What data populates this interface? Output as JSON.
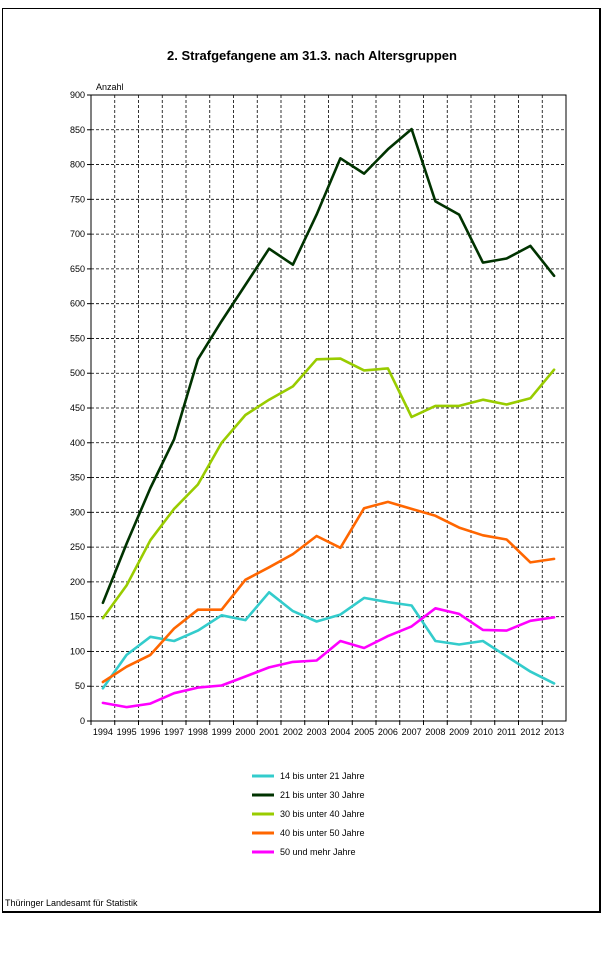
{
  "chart_data": {
    "type": "line",
    "title": "2. Strafgefangene am 31.3. nach Altersgruppen",
    "ylabel": "Anzahl",
    "xlabel": "",
    "categories": [
      "1994",
      "1995",
      "1996",
      "1997",
      "1998",
      "1999",
      "2000",
      "2001",
      "2002",
      "2003",
      "2004",
      "2005",
      "2006",
      "2007",
      "2008",
      "2009",
      "2010",
      "2011",
      "2012",
      "2013"
    ],
    "ylim": [
      0,
      900
    ],
    "yticks": [
      "0",
      "50",
      "100",
      "150",
      "200",
      "250",
      "300",
      "350",
      "400",
      "450",
      "500",
      "550",
      "600",
      "650",
      "700",
      "750",
      "800",
      "850",
      "900"
    ],
    "grid": true,
    "legend_position": "bottom",
    "series": [
      {
        "name": "14 bis unter 21 Jahre",
        "color": "#33cccc",
        "values": [
          47,
          95,
          121,
          115,
          130,
          152,
          145,
          185,
          158,
          143,
          153,
          177,
          171,
          166,
          115,
          110,
          115,
          93,
          71,
          54
        ]
      },
      {
        "name": "21 bis unter 30 Jahre",
        "color": "#003300",
        "values": [
          170,
          255,
          335,
          405,
          520,
          575,
          627,
          679,
          656,
          728,
          809,
          787,
          822,
          851,
          747,
          728,
          659,
          665,
          683,
          640
        ]
      },
      {
        "name": "30 bis unter 40 Jahre",
        "color": "#99cc00",
        "values": [
          148,
          195,
          260,
          305,
          340,
          400,
          440,
          462,
          481,
          520,
          521,
          504,
          507,
          437,
          453,
          453,
          462,
          455,
          464,
          505
        ]
      },
      {
        "name": "40 bis unter 50 Jahre",
        "color": "#ff6600",
        "values": [
          56,
          78,
          95,
          133,
          160,
          160,
          203,
          221,
          240,
          266,
          249,
          306,
          315,
          305,
          295,
          278,
          267,
          261,
          228,
          233
        ]
      },
      {
        "name": "50 und mehr Jahre",
        "color": "#ff00ff",
        "values": [
          26,
          20,
          25,
          40,
          48,
          51,
          64,
          77,
          85,
          87,
          115,
          105,
          122,
          136,
          162,
          154,
          131,
          130,
          144,
          149
        ]
      }
    ]
  },
  "source": "Thüringer Landesamt für Statistik"
}
